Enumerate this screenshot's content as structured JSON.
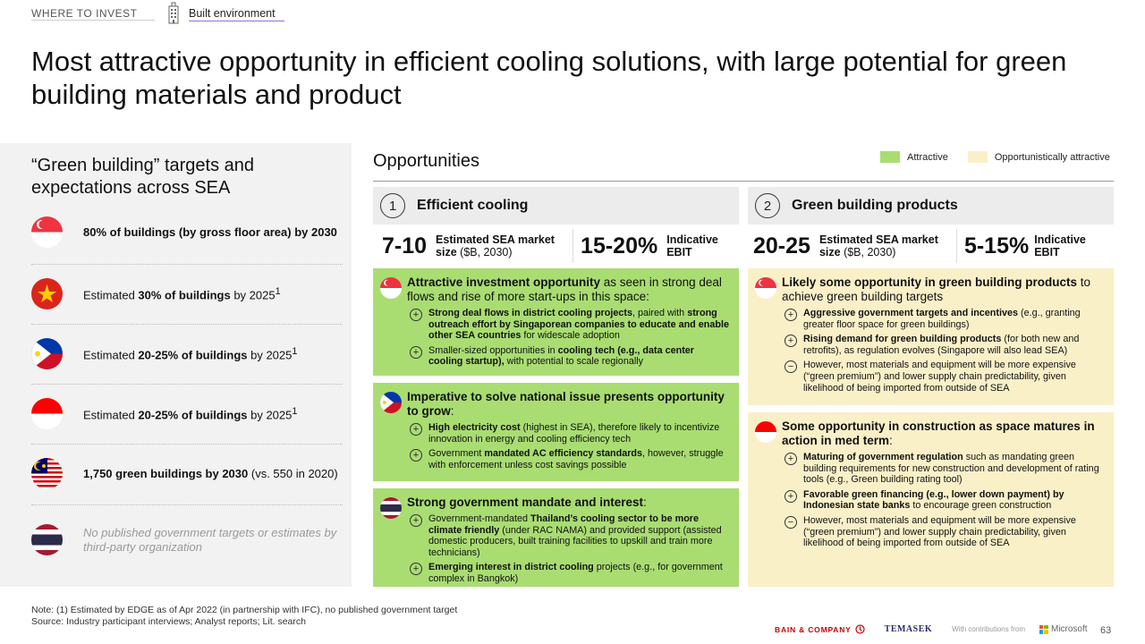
{
  "nav": {
    "section": "WHERE TO INVEST",
    "page": "Built environment",
    "icon": "building-icon"
  },
  "title": "Most attractive opportunity in efficient cooling solutions, with large potential for green building materials and product",
  "left": {
    "title": "“Green building” targets and expectations across SEA",
    "rows": [
      {
        "flag": "singapore-flag-icon",
        "html": "<b>80% of buildings (by gross floor area) by 2030</b>"
      },
      {
        "flag": "vietnam-flag-icon",
        "html": "Estimated <b>30% of buildings</b> by 2025<sup>1</sup>"
      },
      {
        "flag": "philippines-flag-icon",
        "html": "Estimated <b>20-25% of buildings</b> by 2025<sup>1</sup>"
      },
      {
        "flag": "indonesia-flag-icon",
        "html": "Estimated <b>20-25% of buildings</b> by 2025<sup>1</sup>"
      },
      {
        "flag": "malaysia-flag-icon",
        "html": "<b>1,750 green buildings by 2030</b> (vs. 550 in 2020)"
      },
      {
        "flag": "thailand-flag-icon",
        "html": "No published government targets or estimates by third-party organization"
      }
    ]
  },
  "opportunities": {
    "title": "Opportunities",
    "legend": [
      {
        "label": "Attractive",
        "color": "#a9dd72"
      },
      {
        "label": "Opportunistically attractive",
        "color": "#faf0c8"
      }
    ],
    "columns": [
      {
        "num": "1",
        "title": "Efficient cooling",
        "metric1": {
          "value": "7-10",
          "label": "<b>Estimated SEA market size</b> ($B, 2030)"
        },
        "metric2": {
          "value": "15-20%",
          "label": "<b>Indicative EBIT</b>"
        },
        "cards": [
          {
            "flag": "singapore-flag-icon",
            "head": "<b>Attractive investment opportunity</b> as seen in strong deal flows and rise of more start-ups in this space:",
            "bullets": [
              {
                "sign": "+",
                "html": "<b>Strong deal flows in district cooling projects</b>, paired with <b>strong outreach effort by Singaporean companies to educate and enable other SEA countries</b> for widescale adoption"
              },
              {
                "sign": "+",
                "html": "Smaller-sized opportunities in <b>cooling tech (e.g., data center cooling startup),</b> with potential to scale regionally"
              }
            ]
          },
          {
            "flag": "philippines-flag-icon",
            "head": "<b>Imperative to solve national issue presents opportunity to grow</b>:",
            "bullets": [
              {
                "sign": "+",
                "html": "<b>High electricity cost</b> (highest in SEA), therefore likely to incentivize innovation in energy and cooling efficiency tech"
              },
              {
                "sign": "+",
                "html": "Government <b>mandated AC efficiency standards</b>, however, struggle with enforcement unless cost savings possible"
              }
            ]
          },
          {
            "flag": "thailand-flag-icon",
            "head": "<b>Strong government mandate and interest</b>:",
            "bullets": [
              {
                "sign": "+",
                "html": "Government-mandated <b>Thailand’s cooling sector to be more climate friendly</b> (under RAC NAMA) and provided support (assisted domestic producers, built training facilities to upskill and train more technicians)"
              },
              {
                "sign": "+",
                "html": "<b>Emerging interest in district cooling</b> projects (e.g., for government complex in Bangkok)"
              }
            ]
          }
        ]
      },
      {
        "num": "2",
        "title": "Green building products",
        "metric1": {
          "value": "20-25",
          "label": "<b>Estimated SEA market size</b> ($B, 2030)"
        },
        "metric2": {
          "value": "5-15%",
          "label": "<b>Indicative EBIT</b>"
        },
        "cards": [
          {
            "flag": "singapore-flag-icon",
            "head": "<b>Likely some opportunity in green building products</b> to achieve green building targets",
            "bullets": [
              {
                "sign": "+",
                "html": "<b>Aggressive government targets and incentives</b> (e.g., granting greater floor space for green buildings)"
              },
              {
                "sign": "+",
                "html": "<b>Rising demand for green building products</b> (for both new and retrofits), as regulation evolves (Singapore will also lead SEA)"
              },
              {
                "sign": "−",
                "html": "However, most materials and equipment will be more expensive (“green premium”) and lower supply chain predictability, given likelihood of being imported from outside of SEA"
              }
            ]
          },
          {
            "flag": "indonesia-flag-icon",
            "head": "<b>Some opportunity in construction as space matures in action in med term</b>:",
            "bullets": [
              {
                "sign": "+",
                "html": "<b>Maturing of government regulation</b> such as mandating green building requirements for new construction and development of rating tools (e.g., Green building rating tool)"
              },
              {
                "sign": "+",
                "html": "<b>Favorable green financing (e.g., lower down payment) by Indonesian state banks</b> to encourage green construction"
              },
              {
                "sign": "−",
                "html": "However, most materials and equipment will be more expensive (“green premium”) and lower supply chain predictability, given likelihood of being imported from outside of SEA"
              }
            ]
          }
        ]
      }
    ]
  },
  "footer": {
    "note": "Note: (1) Estimated by EDGE as of Apr 2022 (in partnership with IFC), no published government target",
    "source": "Source:  Industry participant interviews; Analyst reports; Lit. search",
    "bain": "BAIN & COMPANY",
    "temasek": "TEMASEK",
    "contrib": "With contributions from",
    "microsoft": "Microsoft",
    "page": "63"
  }
}
